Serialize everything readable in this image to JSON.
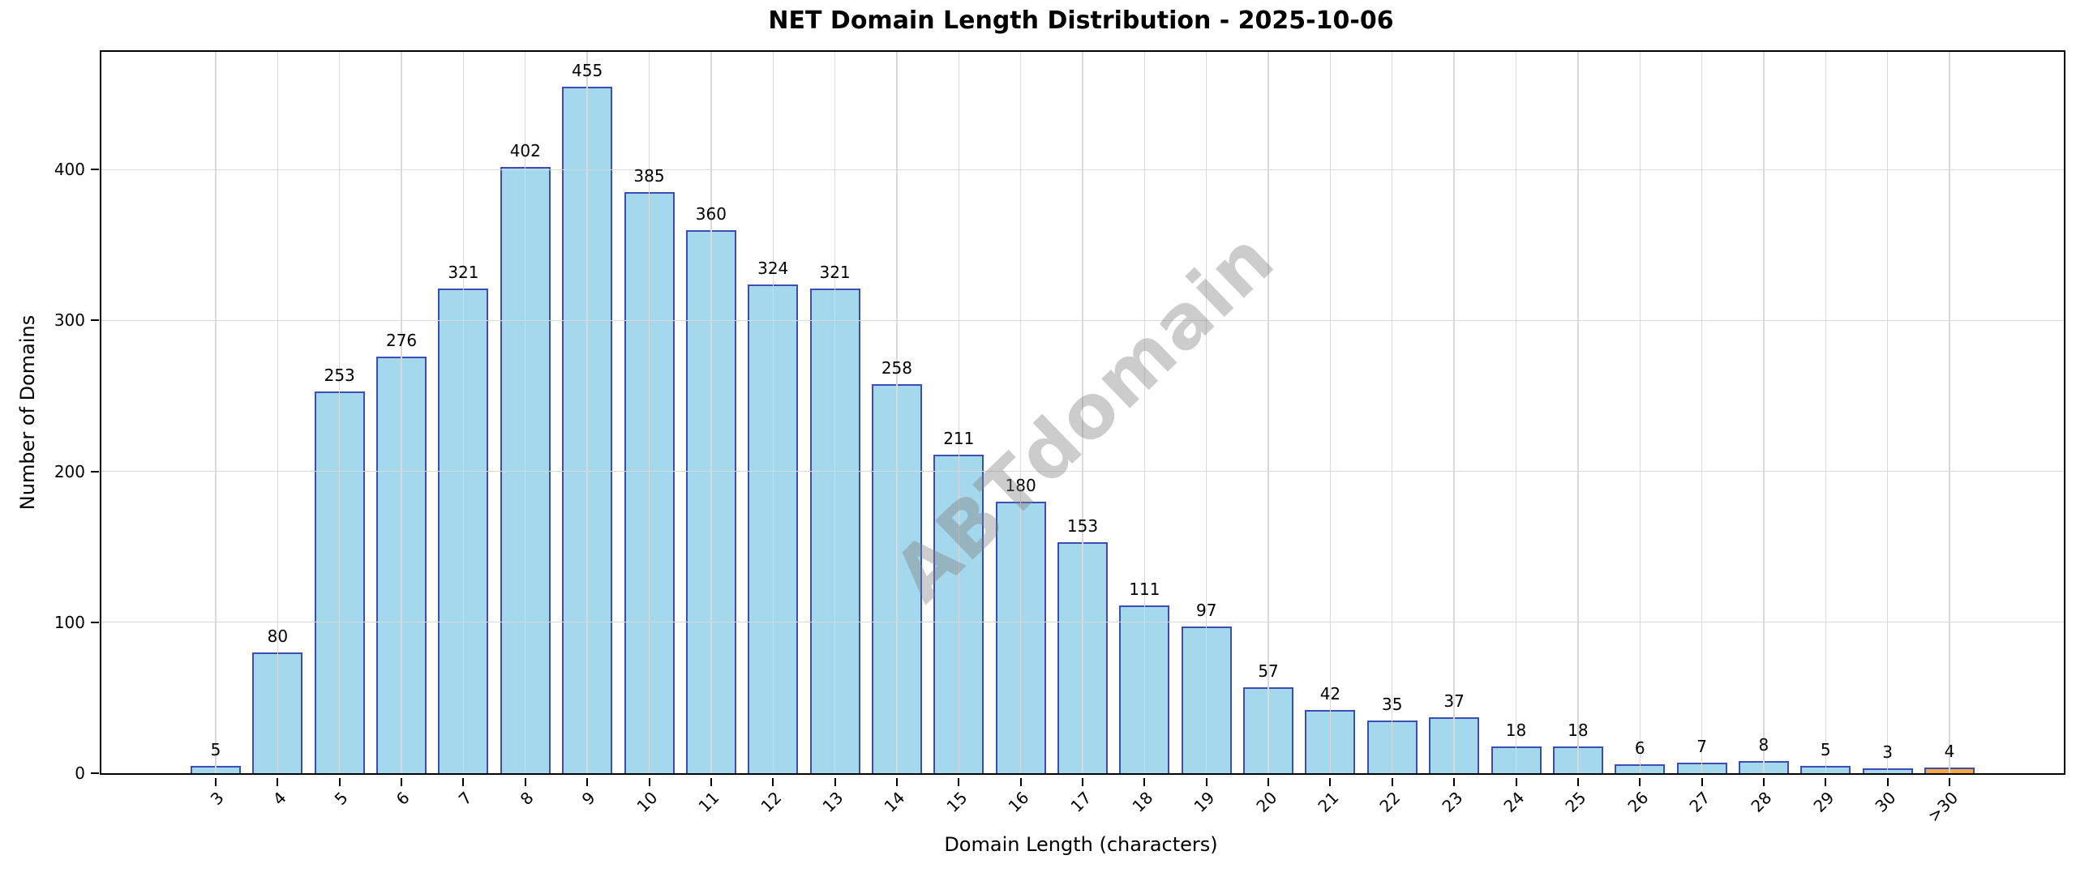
{
  "title": "NET Domain Length Distribution - 2025-10-06",
  "watermark": "ABTdomain",
  "chart_data": {
    "type": "bar",
    "title": "NET Domain Length Distribution - 2025-10-06",
    "xlabel": "Domain Length (characters)",
    "ylabel": "Number of Domains",
    "categories": [
      "3",
      "4",
      "5",
      "6",
      "7",
      "8",
      "9",
      "10",
      "11",
      "12",
      "13",
      "14",
      "15",
      "16",
      "17",
      "18",
      "19",
      "20",
      "21",
      "22",
      "23",
      "24",
      "25",
      "26",
      "27",
      "28",
      "29",
      "30",
      ">30"
    ],
    "values": [
      5,
      80,
      253,
      276,
      321,
      402,
      455,
      385,
      360,
      324,
      321,
      258,
      211,
      180,
      153,
      111,
      97,
      57,
      42,
      35,
      37,
      18,
      18,
      6,
      7,
      8,
      5,
      3,
      4
    ],
    "yticks": [
      0,
      100,
      200,
      300,
      400
    ],
    "ylim": [
      0,
      478
    ],
    "grid": true,
    "legend": null,
    "xtick_rotation_deg": 45,
    "bar_fill_color": "#a4d8ec",
    "bar_edge_color": "#3d4db7",
    "highlight_index": 28,
    "highlight_fill_color": "#f7a941",
    "grid_color": "#d9d9d9",
    "watermark": "ABTdomain"
  }
}
